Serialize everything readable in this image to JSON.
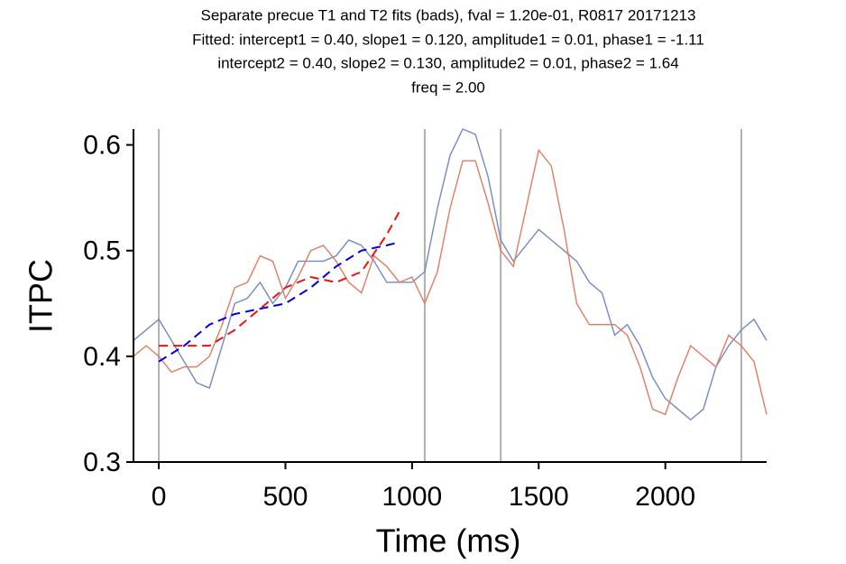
{
  "chart_data": {
    "type": "line",
    "title": [
      "Separate precue T1 and T2 fits (bads), fval = 1.20e-01, R0817 20171213",
      "Fitted: intercept1 = 0.40, slope1 = 0.120, amplitude1 = 0.01, phase1 = -1.11",
      "intercept2 = 0.40, slope2 = 0.130, amplitude2 = 0.01, phase2 = 1.64",
      "freq = 2.00"
    ],
    "xlabel": "Time (ms)",
    "ylabel": "ITPC",
    "xlim": [
      -100,
      2400
    ],
    "ylim": [
      0.3,
      0.615
    ],
    "xticks": [
      0,
      500,
      1000,
      1500,
      2000
    ],
    "yticks": [
      0.3,
      0.4,
      0.5,
      0.6
    ],
    "vlines": [
      0,
      1050,
      1350,
      2300
    ],
    "vline_color": "#b0b0b0",
    "series": [
      {
        "color": "#7489c3",
        "dashed": false,
        "x": [
          -100,
          -50,
          0,
          50,
          100,
          150,
          200,
          250,
          300,
          350,
          400,
          450,
          500,
          550,
          600,
          650,
          700,
          750,
          800,
          850,
          900,
          950,
          1000,
          1050,
          1100,
          1150,
          1200,
          1250,
          1300,
          1350,
          1400,
          1450,
          1500,
          1550,
          1600,
          1650,
          1700,
          1750,
          1800,
          1850,
          1900,
          1950,
          2000,
          2050,
          2100,
          2150,
          2200,
          2250,
          2300,
          2350,
          2400
        ],
        "values": [
          0.415,
          0.425,
          0.435,
          0.415,
          0.395,
          0.375,
          0.37,
          0.41,
          0.45,
          0.455,
          0.47,
          0.45,
          0.465,
          0.49,
          0.49,
          0.49,
          0.495,
          0.51,
          0.505,
          0.49,
          0.47,
          0.47,
          0.47,
          0.48,
          0.54,
          0.59,
          0.615,
          0.61,
          0.57,
          0.51,
          0.49,
          0.505,
          0.52,
          0.51,
          0.5,
          0.49,
          0.47,
          0.46,
          0.42,
          0.43,
          0.41,
          0.38,
          0.36,
          0.35,
          0.34,
          0.35,
          0.39,
          0.41,
          0.425,
          0.435,
          0.415
        ]
      },
      {
        "color": "#e07c5e",
        "dashed": false,
        "x": [
          -100,
          -50,
          0,
          50,
          100,
          150,
          200,
          250,
          300,
          350,
          400,
          450,
          500,
          550,
          600,
          650,
          700,
          750,
          800,
          850,
          900,
          950,
          1000,
          1050,
          1100,
          1150,
          1200,
          1250,
          1300,
          1350,
          1400,
          1450,
          1500,
          1550,
          1600,
          1650,
          1700,
          1750,
          1800,
          1850,
          1900,
          1950,
          2000,
          2050,
          2100,
          2150,
          2200,
          2250,
          2300,
          2350,
          2400
        ],
        "values": [
          0.4,
          0.41,
          0.4,
          0.385,
          0.39,
          0.39,
          0.4,
          0.43,
          0.465,
          0.47,
          0.495,
          0.49,
          0.455,
          0.475,
          0.5,
          0.505,
          0.49,
          0.47,
          0.46,
          0.495,
          0.485,
          0.47,
          0.475,
          0.45,
          0.48,
          0.54,
          0.585,
          0.585,
          0.545,
          0.5,
          0.485,
          0.54,
          0.595,
          0.58,
          0.52,
          0.45,
          0.43,
          0.43,
          0.43,
          0.42,
          0.39,
          0.35,
          0.345,
          0.38,
          0.41,
          0.4,
          0.39,
          0.42,
          0.41,
          0.395,
          0.345
        ]
      },
      {
        "color": "#0000dd",
        "dashed": true,
        "x": [
          0,
          100,
          200,
          300,
          400,
          500,
          600,
          700,
          800,
          900,
          950
        ],
        "values": [
          0.395,
          0.41,
          0.43,
          0.44,
          0.445,
          0.45,
          0.465,
          0.485,
          0.5,
          0.505,
          0.508
        ]
      },
      {
        "color": "#ee1111",
        "dashed": true,
        "x": [
          0,
          100,
          200,
          300,
          400,
          500,
          600,
          700,
          800,
          900,
          950
        ],
        "values": [
          0.41,
          0.41,
          0.41,
          0.425,
          0.445,
          0.465,
          0.475,
          0.47,
          0.48,
          0.515,
          0.537
        ]
      }
    ]
  }
}
